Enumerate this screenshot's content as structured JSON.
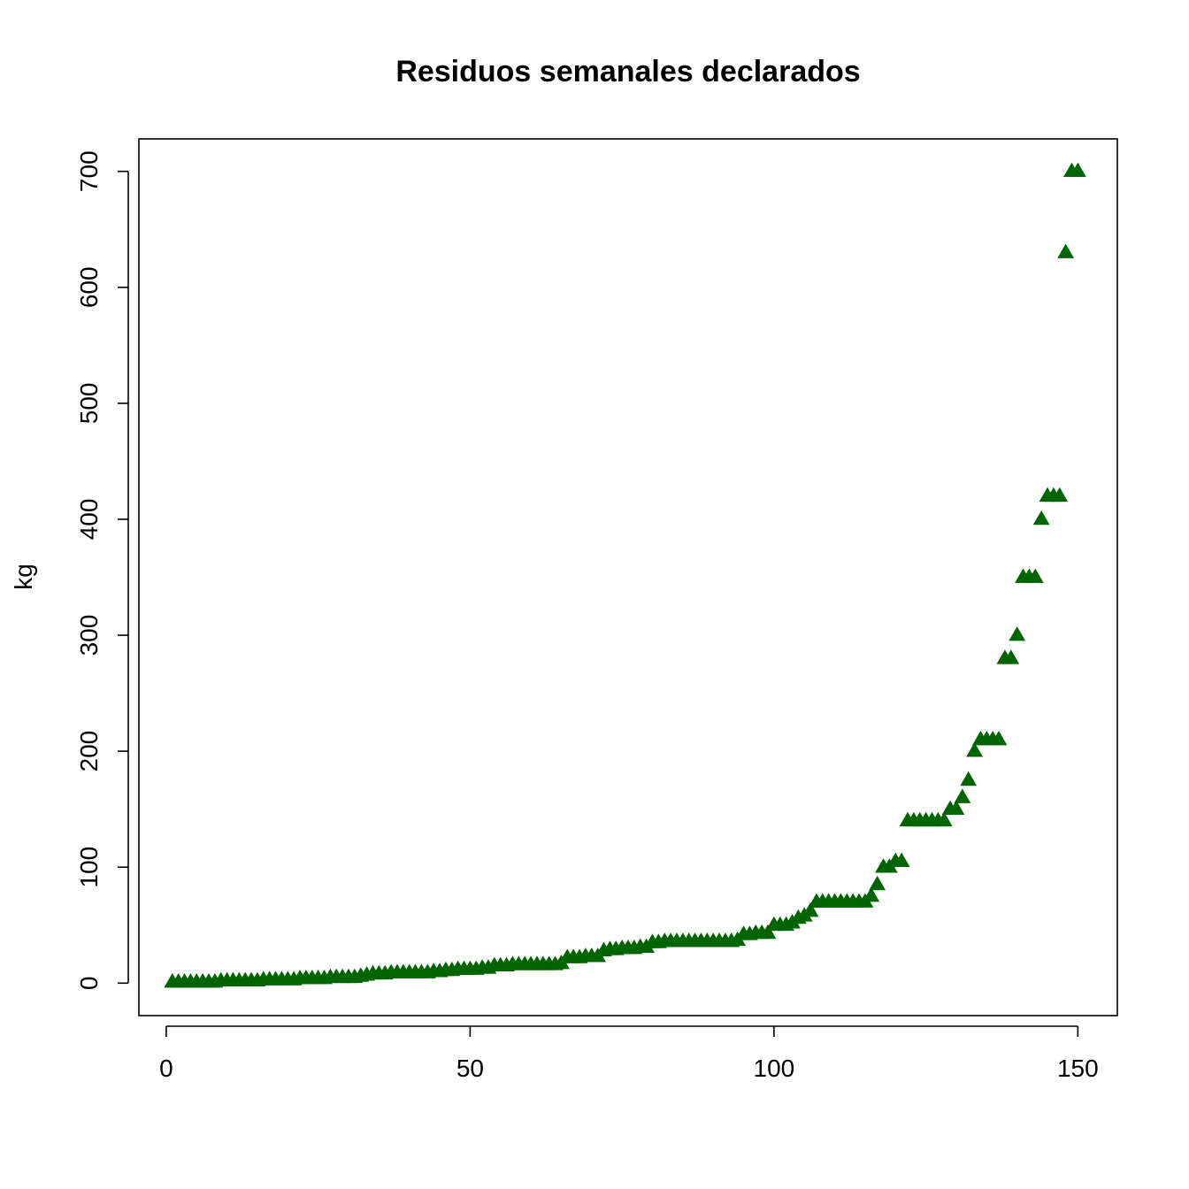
{
  "chart_data": {
    "type": "scatter",
    "title": "Residuos semanales declarados",
    "xlabel": "",
    "ylabel": "kg",
    "xlim": [
      -4.5,
      156.5
    ],
    "ylim": [
      -28,
      728
    ],
    "xticks": [
      0,
      50,
      100,
      150
    ],
    "yticks": [
      0,
      100,
      200,
      300,
      400,
      500,
      600,
      700
    ],
    "grid": false,
    "marker": "filled-triangle",
    "marker_color": "#006400",
    "x": [
      1,
      2,
      3,
      4,
      5,
      6,
      7,
      8,
      9,
      10,
      11,
      12,
      13,
      14,
      15,
      16,
      17,
      18,
      19,
      20,
      21,
      22,
      23,
      24,
      25,
      26,
      27,
      28,
      29,
      30,
      31,
      32,
      33,
      34,
      35,
      36,
      37,
      38,
      39,
      40,
      41,
      42,
      43,
      44,
      45,
      46,
      47,
      48,
      49,
      50,
      51,
      52,
      53,
      54,
      55,
      56,
      57,
      58,
      59,
      60,
      61,
      62,
      63,
      64,
      65,
      66,
      67,
      68,
      69,
      70,
      71,
      72,
      73,
      74,
      75,
      76,
      77,
      78,
      79,
      80,
      81,
      82,
      83,
      84,
      85,
      86,
      87,
      88,
      89,
      90,
      91,
      92,
      93,
      94,
      95,
      96,
      97,
      98,
      99,
      100,
      101,
      102,
      103,
      104,
      105,
      106,
      107,
      108,
      109,
      110,
      111,
      112,
      113,
      114,
      115,
      116,
      117,
      118,
      119,
      120,
      121,
      122,
      123,
      124,
      125,
      126,
      127,
      128,
      129,
      130,
      131,
      132,
      133,
      134,
      135,
      136,
      137,
      138,
      139,
      140,
      141,
      142,
      143,
      144,
      145,
      146,
      147,
      148,
      149,
      150
    ],
    "y": [
      1,
      1,
      1,
      1,
      1,
      1,
      1,
      1,
      2,
      2,
      2,
      2,
      2,
      2,
      2,
      3,
      3,
      3,
      3,
      3,
      3,
      4,
      4,
      4,
      4,
      4,
      5,
      5,
      5,
      5,
      5,
      6,
      7,
      8,
      8,
      8,
      9,
      9,
      9,
      9,
      9,
      9,
      9,
      10,
      10,
      11,
      11,
      12,
      12,
      12,
      12,
      13,
      13,
      15,
      15,
      15,
      16,
      16,
      16,
      16,
      16,
      16,
      16,
      16,
      17,
      22,
      22,
      22,
      23,
      23,
      23,
      28,
      29,
      29,
      30,
      30,
      30,
      31,
      31,
      35,
      35,
      36,
      36,
      36,
      36,
      36,
      36,
      36,
      36,
      36,
      36,
      36,
      36,
      37,
      42,
      42,
      43,
      43,
      43,
      50,
      50,
      50,
      52,
      56,
      58,
      62,
      70,
      70,
      70,
      70,
      70,
      70,
      70,
      70,
      70,
      75,
      85,
      100,
      100,
      105,
      105,
      140,
      140,
      140,
      140,
      140,
      140,
      140,
      150,
      150,
      160,
      175,
      200,
      210,
      210,
      210,
      210,
      280,
      280,
      300,
      350,
      350,
      350,
      400,
      420,
      420,
      420,
      630,
      700,
      700
    ]
  }
}
